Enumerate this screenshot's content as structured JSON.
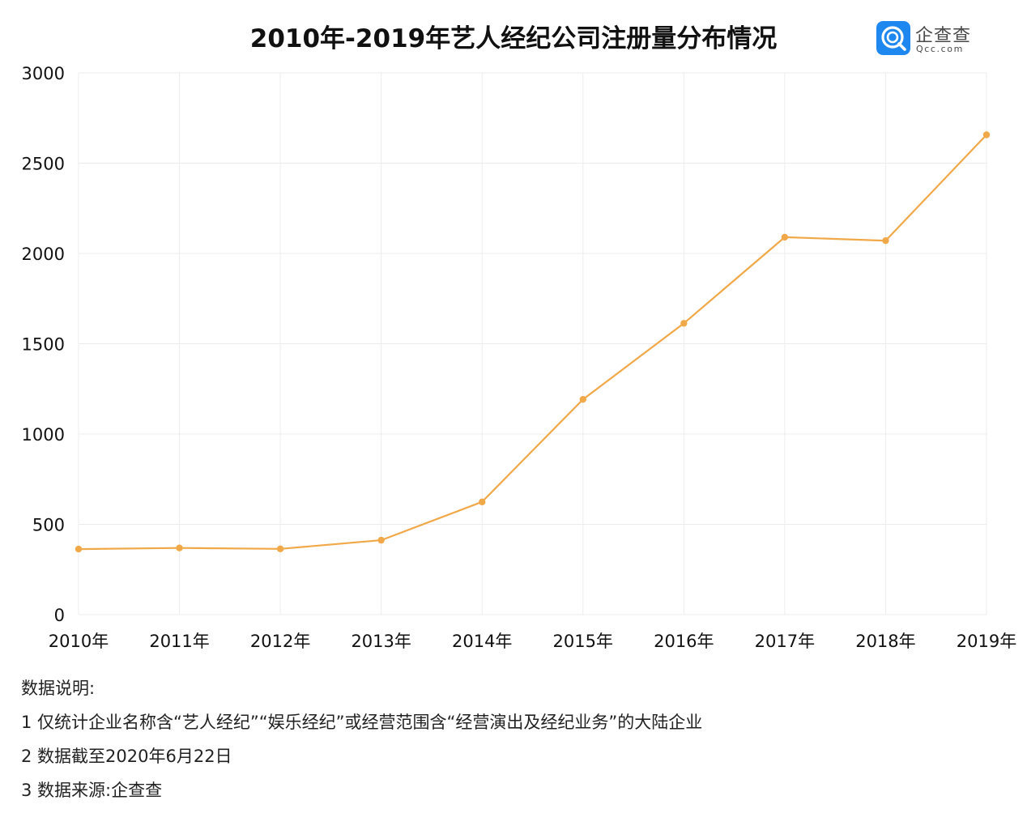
{
  "header": {
    "title": "2010年-2019年艺人经纪公司注册量分布情况"
  },
  "logo": {
    "name": "企查查",
    "domain": "Qcc.com",
    "icon": "qcc-q-search-icon",
    "color": "#1f87f0"
  },
  "chart_data": {
    "type": "line",
    "title": "2010年-2019年艺人经纪公司注册量分布情况",
    "xlabel": "",
    "ylabel": "",
    "categories": [
      "2010年",
      "2011年",
      "2012年",
      "2013年",
      "2014年",
      "2015年",
      "2016年",
      "2017年",
      "2018年",
      "2019年"
    ],
    "series": [
      {
        "values": [
          363,
          369,
          364,
          412,
          624,
          1192,
          1613,
          2090,
          2071,
          2657
        ]
      }
    ],
    "ylim": [
      0,
      3000
    ],
    "yticks": [
      "0",
      "500",
      "1000",
      "1500",
      "2000",
      "2500",
      "3000"
    ],
    "grid": true,
    "legend": "none",
    "line_color": "#f0a848",
    "grid_color": "#ececec"
  },
  "notes": {
    "heading": "数据说明:",
    "lines": [
      "1 仅统计企业名称含“艺人经纪”“娱乐经纪”或经营范围含“经营演出及经纪业务”的大陆企业",
      "2 数据截至2020年6月22日",
      "3 数据来源:企查查"
    ]
  }
}
